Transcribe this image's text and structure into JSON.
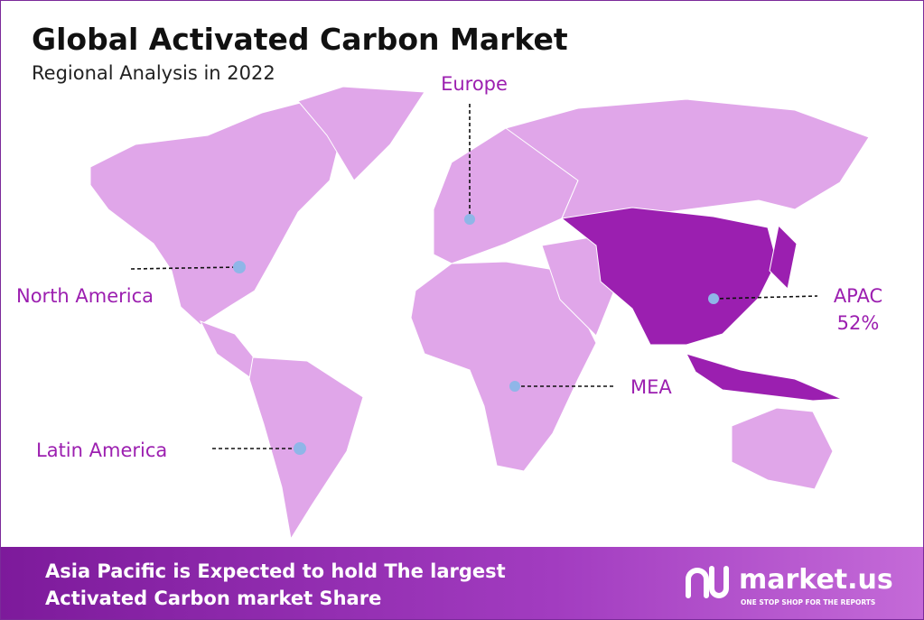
{
  "header": {
    "title": "Global Activated Carbon Market",
    "subtitle": "Regional Analysis in 2022"
  },
  "regions": [
    {
      "label": "Europe"
    },
    {
      "label": "North America"
    },
    {
      "label": "APAC",
      "share": "52%"
    },
    {
      "label": "MEA"
    },
    {
      "label": "Latin America"
    }
  ],
  "footer": {
    "lines": [
      "Asia Pacific is Expected to hold The largest",
      "Activated Carbon market Share"
    ],
    "brand": "market.us",
    "tagline": "ONE STOP SHOP FOR THE REPORTS"
  }
}
